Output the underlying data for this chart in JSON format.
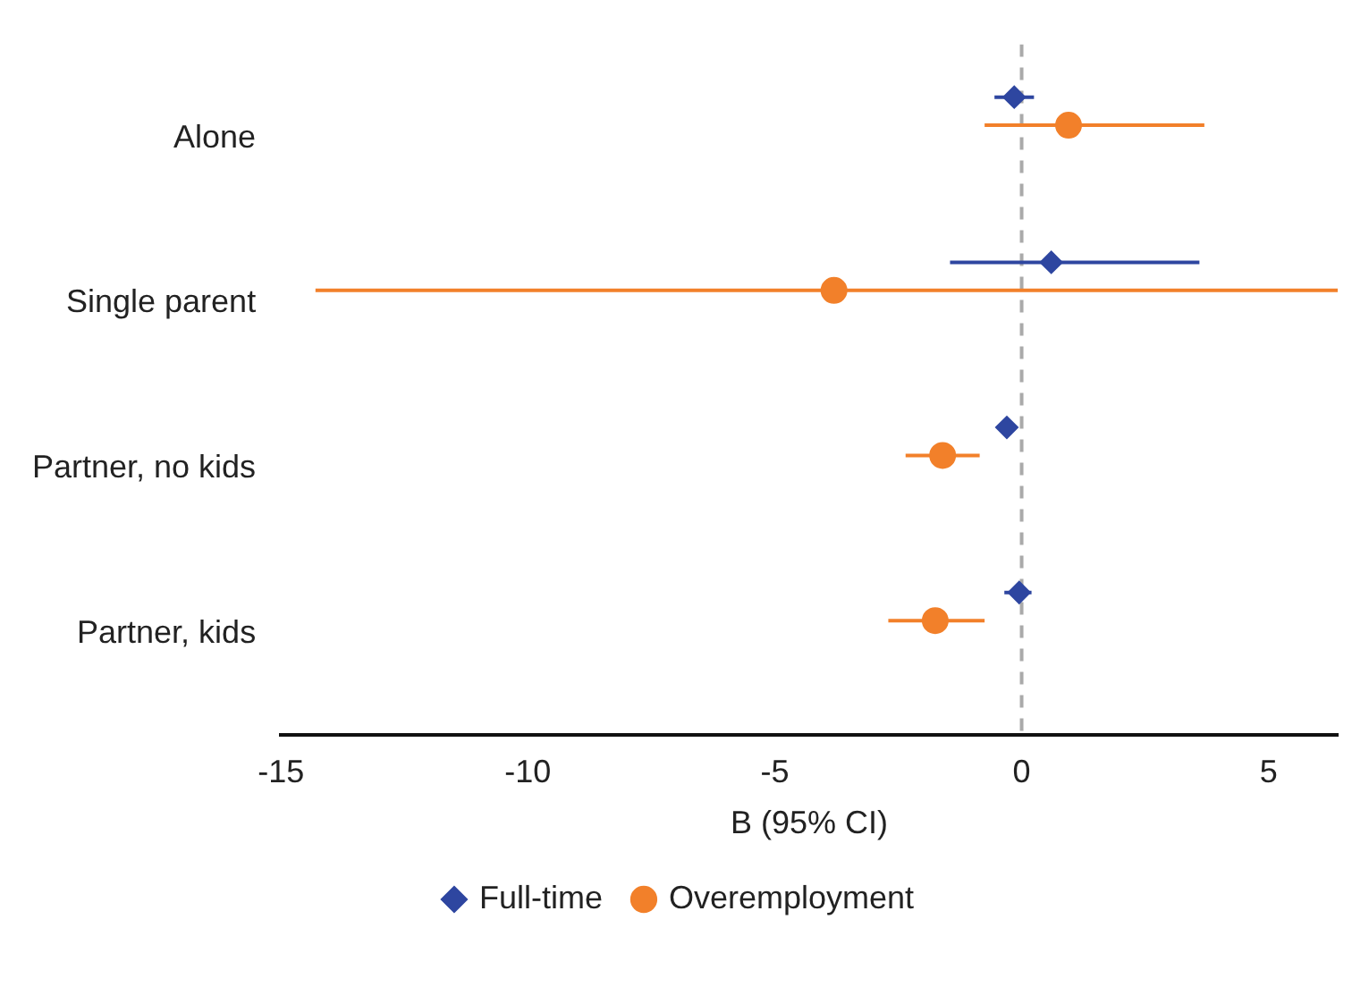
{
  "chart_data": {
    "type": "scatter",
    "orientation": "horizontal",
    "xlabel": "B (95% CI)",
    "categories": [
      "Alone",
      "Single parent",
      "Partner, no kids",
      "Partner, kids"
    ],
    "series": [
      {
        "name": "Full-time",
        "color": "#2e46a0",
        "marker": "diamond",
        "values": [
          -0.15,
          0.6,
          -0.3,
          -0.05
        ],
        "errors": [
          [
            -0.55,
            0.25
          ],
          [
            -1.45,
            3.6
          ],
          [
            -0.5,
            -0.1
          ],
          [
            -0.35,
            0.2
          ]
        ]
      },
      {
        "name": "Overemployment",
        "color": "#f2802a",
        "marker": "circle",
        "values": [
          0.95,
          -3.8,
          -1.6,
          -1.75
        ],
        "errors": [
          [
            -0.75,
            3.7
          ],
          [
            -14.3,
            6.4
          ],
          [
            -2.35,
            -0.85
          ],
          [
            -2.7,
            -0.75
          ]
        ]
      }
    ],
    "xlim": [
      -15,
      6.4
    ],
    "xticks": [
      -15,
      -10,
      -5,
      0,
      5
    ],
    "ref_lines": [
      {
        "axis": "x",
        "value": 0,
        "color": "#aaaaaa",
        "line_style": "dashed"
      }
    ],
    "grid": false,
    "legend": "bottom"
  }
}
